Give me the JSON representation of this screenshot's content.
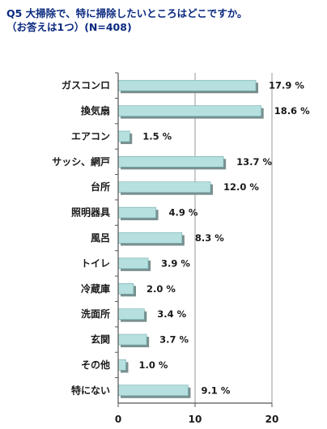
{
  "chart_data": {
    "type": "bar",
    "orientation": "horizontal",
    "title": "Q5 大掃除で、特に掃除したいところはどこですか。",
    "subtitle": "（お答えは1つ）(N=408)",
    "categories": [
      "ガスコンロ",
      "換気扇",
      "エアコン",
      "サッシ、網戸",
      "台所",
      "照明器具",
      "風呂",
      "トイレ",
      "冷蔵庫",
      "洗面所",
      "玄関",
      "その他",
      "特にない"
    ],
    "values": [
      17.9,
      18.6,
      1.5,
      13.7,
      12.0,
      4.9,
      8.3,
      3.9,
      2.0,
      3.4,
      3.7,
      1.0,
      9.1
    ],
    "value_labels": [
      "17.9 %",
      "18.6 %",
      "1.5 %",
      "13.7 %",
      "12.0 %",
      "4.9 %",
      "8.3 %",
      "3.9 %",
      "2.0 %",
      "3.4 %",
      "3.7 %",
      "1.0 %",
      "9.1 %"
    ],
    "xlim": [
      0,
      20
    ],
    "xticks": [
      0,
      10,
      20
    ],
    "xtick_labels": [
      "0",
      "10",
      "20"
    ],
    "grid": true,
    "colors": {
      "bar": "#b6e0e0",
      "bar_edge": "#6aa8a8",
      "bar_shadow": "#7a8f8f",
      "axis": "#555555",
      "grid": "#9a9a9a",
      "title": "#0a2a80"
    }
  }
}
